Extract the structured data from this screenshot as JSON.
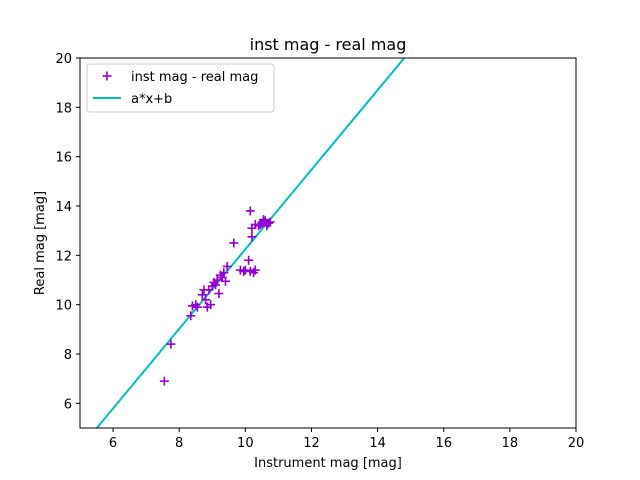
{
  "chart_data": {
    "type": "scatter",
    "title": "inst mag - real mag",
    "xlabel": "Instrument mag [mag]",
    "ylabel": "Real mag [mag]",
    "xlim": [
      5,
      20
    ],
    "ylim": [
      5,
      20
    ],
    "xticks": [
      6,
      8,
      10,
      12,
      14,
      16,
      18,
      20
    ],
    "yticks": [
      6,
      8,
      10,
      12,
      14,
      16,
      18,
      20
    ],
    "grid": false,
    "legend_position": "top-left",
    "series": [
      {
        "name": "inst mag - real mag",
        "kind": "scatter",
        "marker": "plus",
        "color": "#9400D3",
        "points": [
          [
            7.55,
            6.9
          ],
          [
            7.75,
            8.4
          ],
          [
            8.35,
            9.55
          ],
          [
            8.4,
            9.95
          ],
          [
            8.5,
            10.0
          ],
          [
            8.55,
            9.9
          ],
          [
            8.7,
            10.4
          ],
          [
            8.75,
            10.6
          ],
          [
            8.8,
            10.2
          ],
          [
            8.85,
            9.9
          ],
          [
            8.9,
            10.6
          ],
          [
            8.95,
            10.0
          ],
          [
            9.0,
            10.75
          ],
          [
            9.05,
            10.9
          ],
          [
            9.1,
            10.8
          ],
          [
            9.15,
            11.0
          ],
          [
            9.2,
            10.45
          ],
          [
            9.25,
            11.2
          ],
          [
            9.3,
            11.1
          ],
          [
            9.35,
            11.3
          ],
          [
            9.4,
            10.95
          ],
          [
            9.45,
            11.55
          ],
          [
            9.65,
            12.5
          ],
          [
            9.85,
            11.4
          ],
          [
            9.95,
            11.35
          ],
          [
            10.0,
            11.4
          ],
          [
            10.1,
            11.8
          ],
          [
            10.15,
            13.8
          ],
          [
            10.15,
            11.35
          ],
          [
            10.2,
            12.75
          ],
          [
            10.2,
            13.1
          ],
          [
            10.25,
            11.3
          ],
          [
            10.3,
            11.4
          ],
          [
            10.3,
            13.25
          ],
          [
            10.4,
            13.2
          ],
          [
            10.45,
            13.25
          ],
          [
            10.5,
            13.3
          ],
          [
            10.55,
            13.45
          ],
          [
            10.6,
            13.4
          ],
          [
            10.65,
            13.2
          ],
          [
            10.7,
            13.3
          ],
          [
            10.75,
            13.35
          ]
        ]
      },
      {
        "name": "a*x+b",
        "kind": "line",
        "color": "#00BFBF",
        "slope": 1.613,
        "intercept": -3.885,
        "x_range": [
          5.5,
          14.8
        ]
      }
    ]
  }
}
